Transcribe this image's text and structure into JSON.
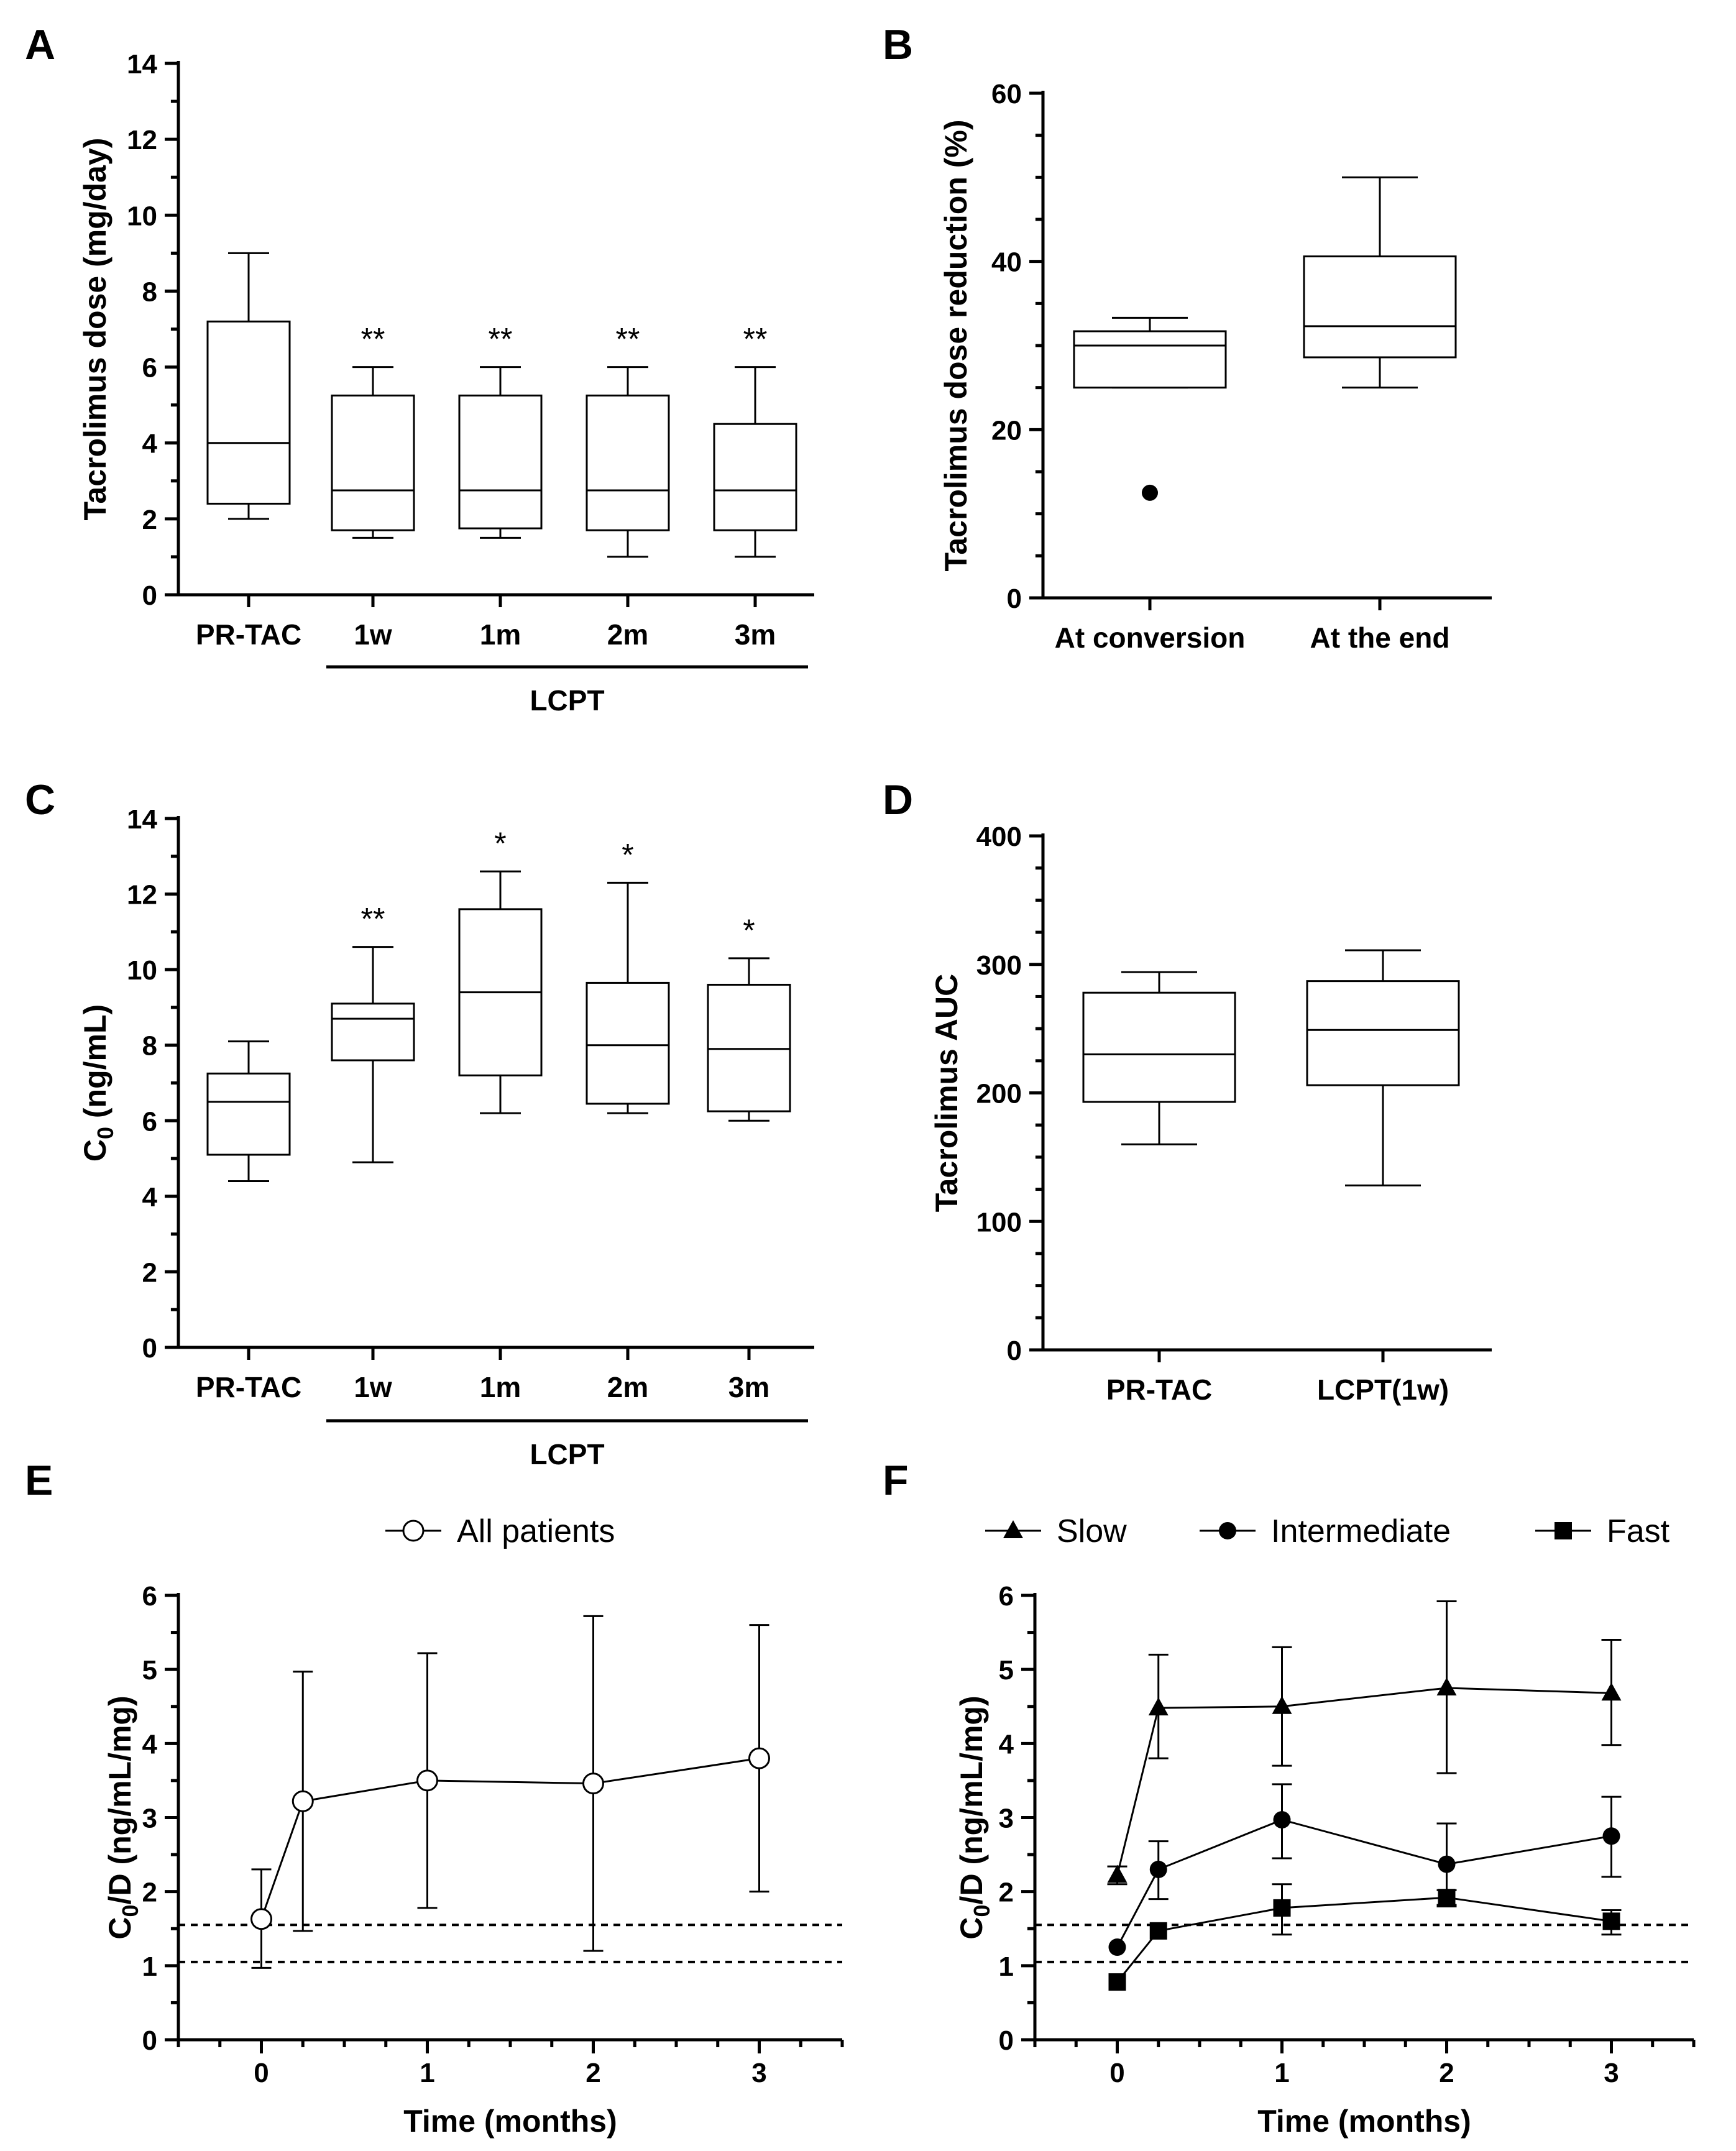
{
  "chart_data": [
    {
      "panel": "A",
      "type": "box",
      "ylabel": "Tacrolimus dose (mg/day)",
      "ylim": [
        0,
        14
      ],
      "yticks": [
        0,
        2,
        4,
        6,
        8,
        10,
        12,
        14
      ],
      "categories": [
        "PR-TAC",
        "1w",
        "1m",
        "2m",
        "3m"
      ],
      "group_label": "LCPT",
      "boxes": [
        {
          "min": 2,
          "q1": 2.4,
          "median": 4,
          "q3": 7.2,
          "max": 9,
          "sig": ""
        },
        {
          "min": 1.5,
          "q1": 1.7,
          "median": 2.75,
          "q3": 5.25,
          "max": 6,
          "sig": "**"
        },
        {
          "min": 1.5,
          "q1": 1.75,
          "median": 2.75,
          "q3": 5.25,
          "max": 6,
          "sig": "**"
        },
        {
          "min": 1,
          "q1": 1.7,
          "median": 2.75,
          "q3": 5.25,
          "max": 6,
          "sig": "**"
        },
        {
          "min": 1,
          "q1": 1.7,
          "median": 2.75,
          "q3": 4.5,
          "max": 6,
          "sig": "**"
        }
      ]
    },
    {
      "panel": "B",
      "type": "box",
      "ylabel": "Tacrolimus dose reduction (%)",
      "ylim": [
        0,
        60
      ],
      "yticks": [
        0,
        20,
        40,
        60
      ],
      "categories": [
        "At conversion",
        "At the end"
      ],
      "boxes": [
        {
          "min": 25,
          "q1": 25,
          "median": 30,
          "q3": 31.7,
          "max": 33.3,
          "outliers": [
            12.5
          ]
        },
        {
          "min": 25,
          "q1": 28.6,
          "median": 32.3,
          "q3": 40.6,
          "max": 50,
          "outliers": []
        }
      ]
    },
    {
      "panel": "C",
      "type": "box",
      "ylabel_main": "C",
      "ylabel_sub": "0",
      "ylabel_rest": " (ng/mL)",
      "ylim": [
        0,
        14
      ],
      "yticks": [
        0,
        2,
        4,
        6,
        8,
        10,
        12,
        14
      ],
      "categories": [
        "PR-TAC",
        "1w",
        "1m",
        "2m",
        "3m"
      ],
      "group_label": "LCPT",
      "boxes": [
        {
          "min": 4.4,
          "q1": 5.1,
          "median": 6.5,
          "q3": 7.25,
          "max": 8.1,
          "sig": ""
        },
        {
          "min": 4.9,
          "q1": 7.6,
          "median": 8.7,
          "q3": 9.1,
          "max": 10.6,
          "sig": "**"
        },
        {
          "min": 6.2,
          "q1": 7.2,
          "median": 9.4,
          "q3": 11.6,
          "max": 12.6,
          "sig": "*"
        },
        {
          "min": 6.2,
          "q1": 6.45,
          "median": 8.0,
          "q3": 9.65,
          "max": 12.3,
          "sig": "*"
        },
        {
          "min": 6.0,
          "q1": 6.25,
          "median": 7.9,
          "q3": 9.6,
          "max": 10.3,
          "sig": "*"
        }
      ]
    },
    {
      "panel": "D",
      "type": "box",
      "ylabel": "Tacrolimus AUC",
      "ylim": [
        0,
        400
      ],
      "yticks": [
        0,
        100,
        200,
        300,
        400
      ],
      "categories": [
        "PR-TAC",
        "LCPT(1w)"
      ],
      "boxes": [
        {
          "min": 160,
          "q1": 193,
          "median": 230,
          "q3": 278,
          "max": 294
        },
        {
          "min": 128,
          "q1": 206,
          "median": 249,
          "q3": 287,
          "max": 311
        }
      ]
    },
    {
      "panel": "E",
      "type": "line",
      "ylabel_main": "C",
      "ylabel_sub": "0",
      "ylabel_rest": "/D (ng/mL/mg)",
      "xlabel": "Time (months)",
      "xlim": [
        -0.5,
        3.5
      ],
      "xticks": [
        0,
        1,
        2,
        3
      ],
      "ylim": [
        0,
        6
      ],
      "yticks": [
        0,
        1,
        2,
        3,
        4,
        5,
        6
      ],
      "reference_lines": [
        1.05,
        1.55
      ],
      "series": [
        {
          "name": "All patients",
          "marker": "open-circle",
          "x": [
            0,
            0.25,
            1,
            2,
            3
          ],
          "y": [
            1.63,
            3.22,
            3.5,
            3.46,
            3.8
          ],
          "err_low": [
            0.97,
            1.47,
            1.78,
            1.2,
            2.0
          ],
          "err_high": [
            2.3,
            4.97,
            5.22,
            5.72,
            5.6
          ]
        }
      ]
    },
    {
      "panel": "F",
      "type": "line",
      "ylabel_main": "C",
      "ylabel_sub": "0",
      "ylabel_rest": "/D (ng/mL/mg)",
      "xlabel": "Time (months)",
      "xlim": [
        -0.5,
        3.5
      ],
      "xticks": [
        0,
        1,
        2,
        3
      ],
      "ylim": [
        0,
        6
      ],
      "yticks": [
        0,
        1,
        2,
        3,
        4,
        5,
        6
      ],
      "reference_lines": [
        1.05,
        1.55
      ],
      "series": [
        {
          "name": "Slow",
          "marker": "triangle",
          "x": [
            0,
            0.25,
            1,
            2,
            3
          ],
          "y": [
            2.22,
            4.48,
            4.5,
            4.75,
            4.68
          ],
          "err_low": [
            2.1,
            3.8,
            3.7,
            3.6,
            3.98
          ],
          "err_high": [
            2.34,
            5.2,
            5.3,
            5.92,
            5.4
          ]
        },
        {
          "name": "Intermediate",
          "marker": "circle",
          "x": [
            0,
            0.25,
            1,
            2,
            3
          ],
          "y": [
            1.25,
            2.3,
            2.97,
            2.37,
            2.75
          ],
          "err_low": [
            1.25,
            1.9,
            2.45,
            1.8,
            2.2
          ],
          "err_high": [
            1.25,
            2.68,
            3.45,
            2.92,
            3.28
          ]
        },
        {
          "name": "Fast",
          "marker": "square",
          "x": [
            0,
            0.25,
            1,
            2,
            3
          ],
          "y": [
            0.78,
            1.47,
            1.78,
            1.92,
            1.6
          ],
          "err_low": [
            0.78,
            1.47,
            1.42,
            1.82,
            1.42
          ],
          "err_high": [
            0.78,
            1.47,
            2.1,
            2.02,
            1.75
          ]
        }
      ]
    }
  ]
}
